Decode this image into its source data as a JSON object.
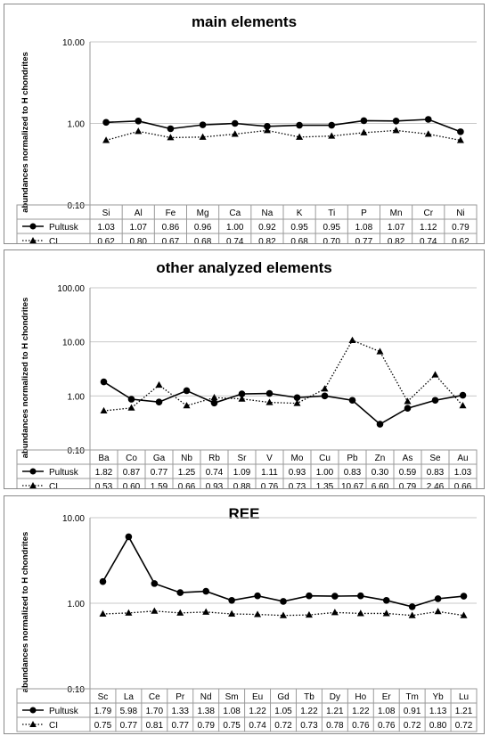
{
  "chart_data": [
    {
      "type": "line",
      "title": "main elements",
      "ylabel": "abundances normalized to H chondrites",
      "yscale": "log",
      "ylim": [
        0.1,
        10
      ],
      "yticks": [
        "0.10",
        "1.00",
        "10.00"
      ],
      "categories": [
        "Si",
        "Al",
        "Fe",
        "Mg",
        "Ca",
        "Na",
        "K",
        "Ti",
        "P",
        "Mn",
        "Cr",
        "Ni"
      ],
      "series": [
        {
          "name": "Pultusk",
          "marker": "circle",
          "line": "solid",
          "values": [
            1.03,
            1.07,
            0.86,
            0.96,
            1.0,
            0.92,
            0.95,
            0.95,
            1.08,
            1.07,
            1.12,
            0.79
          ],
          "labels": [
            "1.03",
            "1.07",
            "0.86",
            "0.96",
            "1.00",
            "0.92",
            "0.95",
            "0.95",
            "1.08",
            "1.07",
            "1.12",
            "0.79"
          ]
        },
        {
          "name": "CI",
          "marker": "triangle",
          "line": "dotted",
          "values": [
            0.62,
            0.8,
            0.67,
            0.68,
            0.74,
            0.82,
            0.68,
            0.7,
            0.77,
            0.82,
            0.74,
            0.62
          ],
          "labels": [
            "0.62",
            "0.80",
            "0.67",
            "0.68",
            "0.74",
            "0.82",
            "0.68",
            "0.70",
            "0.77",
            "0.82",
            "0.74",
            "0.62"
          ]
        }
      ]
    },
    {
      "type": "line",
      "title": "other analyzed elements",
      "ylabel": "abundances normalized to H chondrites",
      "yscale": "log",
      "ylim": [
        0.1,
        100
      ],
      "yticks": [
        "0.10",
        "1.00",
        "10.00",
        "100.00"
      ],
      "categories": [
        "Ba",
        "Co",
        "Ga",
        "Nb",
        "Rb",
        "Sr",
        "V",
        "Mo",
        "Cu",
        "Pb",
        "Zn",
        "As",
        "Se",
        "Au"
      ],
      "series": [
        {
          "name": "Pultusk",
          "marker": "circle",
          "line": "solid",
          "values": [
            1.82,
            0.87,
            0.77,
            1.25,
            0.74,
            1.09,
            1.11,
            0.93,
            1.0,
            0.83,
            0.3,
            0.59,
            0.83,
            1.03
          ],
          "labels": [
            "1.82",
            "0.87",
            "0.77",
            "1.25",
            "0.74",
            "1.09",
            "1.11",
            "0.93",
            "1.00",
            "0.83",
            "0.30",
            "0.59",
            "0.83",
            "1.03"
          ]
        },
        {
          "name": "CI",
          "marker": "triangle",
          "line": "dotted",
          "values": [
            0.53,
            0.6,
            1.59,
            0.66,
            0.93,
            0.88,
            0.76,
            0.73,
            1.35,
            10.67,
            6.6,
            0.79,
            2.46,
            0.66
          ],
          "labels": [
            "0.53",
            "0.60",
            "1.59",
            "0.66",
            "0.93",
            "0.88",
            "0.76",
            "0.73",
            "1.35",
            "10.67",
            "6.60",
            "0.79",
            "2.46",
            "0.66"
          ]
        }
      ]
    },
    {
      "type": "line",
      "title": "REE",
      "ylabel": "abundances normalized to H chondrites",
      "yscale": "log",
      "ylim": [
        0.1,
        10
      ],
      "yticks": [
        "0.10",
        "1.00",
        "10.00"
      ],
      "categories": [
        "Sc",
        "La",
        "Ce",
        "Pr",
        "Nd",
        "Sm",
        "Eu",
        "Gd",
        "Tb",
        "Dy",
        "Ho",
        "Er",
        "Tm",
        "Yb",
        "Lu"
      ],
      "series": [
        {
          "name": "Pultusk",
          "marker": "circle",
          "line": "solid",
          "values": [
            1.79,
            5.98,
            1.7,
            1.33,
            1.38,
            1.08,
            1.22,
            1.05,
            1.22,
            1.21,
            1.22,
            1.08,
            0.91,
            1.13,
            1.21
          ],
          "labels": [
            "1.79",
            "5.98",
            "1.70",
            "1.33",
            "1.38",
            "1.08",
            "1.22",
            "1.05",
            "1.22",
            "1.21",
            "1.22",
            "1.08",
            "0.91",
            "1.13",
            "1.21"
          ]
        },
        {
          "name": "CI",
          "marker": "triangle",
          "line": "dotted",
          "values": [
            0.75,
            0.77,
            0.81,
            0.77,
            0.79,
            0.75,
            0.74,
            0.72,
            0.73,
            0.78,
            0.76,
            0.76,
            0.72,
            0.8,
            0.72
          ],
          "labels": [
            "0.75",
            "0.77",
            "0.81",
            "0.77",
            "0.79",
            "0.75",
            "0.74",
            "0.72",
            "0.73",
            "0.78",
            "0.76",
            "0.76",
            "0.72",
            "0.80",
            "0.72"
          ]
        }
      ]
    }
  ]
}
